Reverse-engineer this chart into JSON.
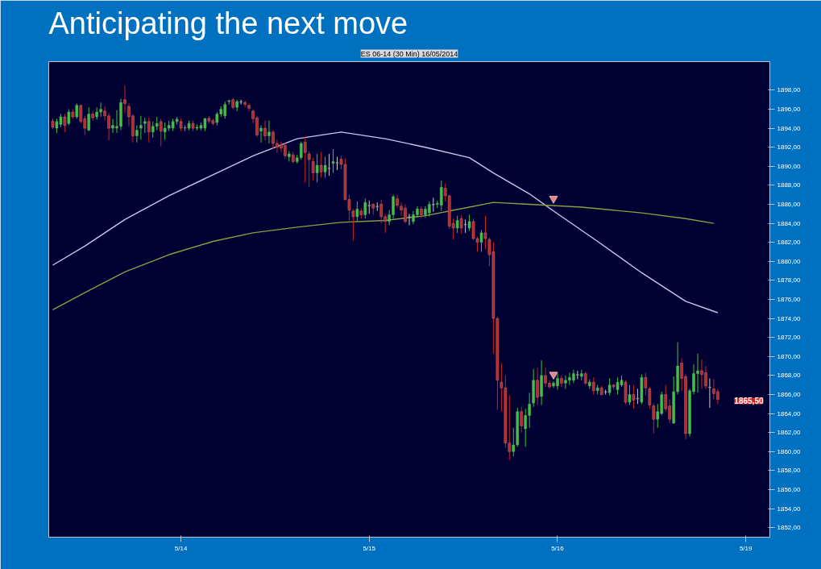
{
  "chart_data": {
    "type": "candlestick",
    "title": "Anticipating the next move",
    "subtitle": "ES 06-14 (30 Min) 16/05/2014",
    "categories": [
      null,
      null,
      null,
      null,
      null,
      null,
      null,
      null,
      null,
      null,
      null,
      null,
      null,
      null,
      null,
      null,
      null,
      null,
      null,
      null,
      null,
      null,
      null,
      null,
      null,
      null,
      null,
      null,
      null,
      null,
      null,
      null,
      "5/14",
      null,
      null,
      null,
      null,
      null,
      null,
      null,
      null,
      null,
      null,
      null,
      null,
      null,
      null,
      null,
      null,
      null,
      null,
      null,
      null,
      null,
      null,
      null,
      null,
      null,
      null,
      null,
      null,
      null,
      null,
      null,
      null,
      null,
      null,
      null,
      null,
      null,
      null,
      null,
      null,
      null,
      null,
      null,
      null,
      null,
      null,
      "5/15",
      null,
      null,
      null,
      null,
      null,
      null,
      null,
      null,
      null,
      null,
      null,
      null,
      null,
      null,
      null,
      null,
      null,
      null,
      null,
      null,
      null,
      null,
      null,
      null,
      null,
      null,
      null,
      null,
      null,
      null,
      null,
      null,
      null,
      null,
      null,
      null,
      null,
      null,
      null,
      null,
      null,
      null,
      null,
      null,
      null,
      null,
      "5/16",
      null,
      null,
      null,
      null,
      null,
      null,
      null,
      null,
      null,
      null,
      null,
      null,
      null,
      null,
      null,
      null,
      null,
      null,
      null,
      null,
      null,
      null,
      null,
      null,
      null,
      null,
      null,
      null,
      null,
      null,
      null,
      null,
      null,
      null,
      null,
      null,
      null,
      null,
      null,
      null,
      null,
      null,
      null,
      null,
      null,
      null,
      "5/19"
    ],
    "ohlc": [
      [
        1894.75,
        1895.0,
        1893.9,
        1894.1
      ],
      [
        1894.0,
        1895.0,
        1893.5,
        1894.7
      ],
      [
        1894.4,
        1895.5,
        1894.1,
        1895.2
      ],
      [
        1895.2,
        1895.5,
        1893.6,
        1894.3
      ],
      [
        1894.5,
        1896.0,
        1894.3,
        1895.7
      ],
      [
        1895.7,
        1896.0,
        1895.0,
        1895.2
      ],
      [
        1895.2,
        1896.6,
        1895.0,
        1896.4
      ],
      [
        1896.4,
        1896.5,
        1894.5,
        1894.7
      ],
      [
        1895.0,
        1895.3,
        1893.3,
        1894.0
      ],
      [
        1893.8,
        1896.2,
        1893.7,
        1895.5
      ],
      [
        1895.5,
        1895.8,
        1894.8,
        1895.1
      ],
      [
        1895.2,
        1896.2,
        1894.9,
        1895.7
      ],
      [
        1895.7,
        1896.7,
        1895.2,
        1896.0
      ],
      [
        1895.8,
        1896.3,
        1894.8,
        1895.3
      ],
      [
        1895.3,
        1895.6,
        1892.7,
        1894.0
      ],
      [
        1894.0,
        1895.0,
        1893.5,
        1894.3
      ],
      [
        1894.0,
        1895.9,
        1893.5,
        1894.2
      ],
      [
        1894.2,
        1897.1,
        1893.8,
        1896.7
      ],
      [
        1897.0,
        1898.5,
        1895.6,
        1896.6
      ],
      [
        1896.3,
        1896.6,
        1894.2,
        1895.2
      ],
      [
        1895.3,
        1895.5,
        1892.5,
        1893.2
      ],
      [
        1893.2,
        1894.3,
        1892.5,
        1893.8
      ],
      [
        1894.0,
        1895.3,
        1892.8,
        1894.3
      ],
      [
        1894.5,
        1895.1,
        1893.5,
        1894.7
      ],
      [
        1894.7,
        1895.1,
        1892.5,
        1893.6
      ],
      [
        1893.6,
        1894.7,
        1893.0,
        1894.2
      ],
      [
        1894.2,
        1895.2,
        1893.8,
        1894.5
      ],
      [
        1894.7,
        1895.0,
        1892.1,
        1893.7
      ],
      [
        1893.6,
        1894.6,
        1892.8,
        1894.0
      ],
      [
        1894.0,
        1894.8,
        1893.7,
        1894.3
      ],
      [
        1894.0,
        1895.0,
        1893.7,
        1894.7
      ],
      [
        1894.7,
        1895.2,
        1894.4,
        1894.95
      ],
      [
        1894.7,
        1895.0,
        1893.7,
        1894.0
      ],
      [
        1894.0,
        1894.3,
        1893.7,
        1894.05
      ],
      [
        1894.0,
        1894.8,
        1893.8,
        1894.5
      ],
      [
        1894.5,
        1894.8,
        1893.7,
        1894.0
      ],
      [
        1894.0,
        1894.4,
        1893.8,
        1894.1
      ],
      [
        1894.0,
        1894.6,
        1893.8,
        1894.3
      ],
      [
        1894.0,
        1895.1,
        1893.7,
        1895.0
      ],
      [
        1895.05,
        1895.3,
        1894.5,
        1894.75
      ],
      [
        1894.8,
        1895.0,
        1894.3,
        1894.5
      ],
      [
        1894.6,
        1895.7,
        1894.3,
        1895.5
      ],
      [
        1895.5,
        1896.3,
        1895.2,
        1896.0
      ],
      [
        1895.3,
        1896.8,
        1895.0,
        1896.5
      ],
      [
        1896.8,
        1897.0,
        1896.5,
        1896.9
      ],
      [
        1897.0,
        1897.2,
        1896.0,
        1896.2
      ],
      [
        1896.2,
        1897.0,
        1895.8,
        1896.8
      ],
      [
        1896.8,
        1897.0,
        1896.5,
        1896.8
      ],
      [
        1896.7,
        1896.9,
        1896.2,
        1896.5
      ],
      [
        1896.4,
        1896.6,
        1895.8,
        1896.1
      ],
      [
        1895.8,
        1896.0,
        1894.5,
        1895.0
      ],
      [
        1895.1,
        1895.3,
        1893.1,
        1893.3
      ],
      [
        1893.7,
        1894.3,
        1892.5,
        1894.0
      ],
      [
        1894.0,
        1894.8,
        1892.7,
        1893.2
      ],
      [
        1893.2,
        1894.8,
        1892.4,
        1893.6
      ],
      [
        1893.6,
        1893.8,
        1891.8,
        1892.4
      ],
      [
        1892.4,
        1892.8,
        1891.4,
        1892.0
      ],
      [
        1892.3,
        1892.6,
        1891.5,
        1891.9
      ],
      [
        1892.2,
        1892.5,
        1890.8,
        1891.1
      ],
      [
        1891.0,
        1891.6,
        1890.5,
        1891.3
      ],
      [
        1891.2,
        1891.5,
        1890.3,
        1890.5
      ],
      [
        1890.5,
        1891.2,
        1890.3,
        1890.9
      ],
      [
        1890.9,
        1892.6,
        1890.7,
        1892.4
      ],
      [
        1892.55,
        1893.1,
        1888.3,
        1891.45
      ],
      [
        1891.3,
        1891.6,
        1887.8,
        1890.7
      ],
      [
        1890.5,
        1890.9,
        1888.5,
        1889.3
      ],
      [
        1889.3,
        1891.3,
        1888.3,
        1890.1
      ],
      [
        1890.1,
        1891.5,
        1888.8,
        1889.4
      ],
      [
        1889.4,
        1891.0,
        1888.8,
        1890.1
      ],
      [
        1889.8,
        1891.3,
        1889.0,
        1889.8
      ],
      [
        1890.3,
        1891.8,
        1889.3,
        1890.5
      ],
      [
        1890.4,
        1891.0,
        1889.6,
        1890.4
      ],
      [
        1890.75,
        1891.1,
        1889.7,
        1890.2
      ],
      [
        1890.2,
        1890.8,
        1886.4,
        1886.5
      ],
      [
        1886.5,
        1887.0,
        1884.3,
        1885.4
      ],
      [
        1885.3,
        1885.5,
        1882.2,
        1884.7
      ],
      [
        1884.7,
        1886.3,
        1884.2,
        1885.5
      ],
      [
        1885.3,
        1885.6,
        1884.5,
        1884.9
      ],
      [
        1884.9,
        1886.6,
        1884.5,
        1886.2
      ],
      [
        1885.9,
        1886.4,
        1885.0,
        1885.9
      ],
      [
        1886.0,
        1886.1,
        1884.9,
        1885.6
      ],
      [
        1885.8,
        1886.2,
        1885.3,
        1885.8
      ],
      [
        1886.0,
        1886.5,
        1884.0,
        1884.7
      ],
      [
        1884.7,
        1885.0,
        1883.0,
        1884.2
      ],
      [
        1884.2,
        1885.4,
        1883.8,
        1884.9
      ],
      [
        1884.9,
        1887.0,
        1884.5,
        1886.8
      ],
      [
        1886.6,
        1887.0,
        1885.6,
        1885.9
      ],
      [
        1885.8,
        1886.2,
        1884.8,
        1885.4
      ],
      [
        1885.6,
        1886.0,
        1884.0,
        1884.2
      ],
      [
        1884.7,
        1885.0,
        1883.8,
        1884.7
      ],
      [
        1884.2,
        1885.3,
        1883.9,
        1884.9
      ],
      [
        1884.9,
        1885.8,
        1884.6,
        1885.5
      ],
      [
        1885.5,
        1885.8,
        1884.6,
        1884.9
      ],
      [
        1884.9,
        1885.8,
        1884.6,
        1885.5
      ],
      [
        1885.1,
        1886.3,
        1884.7,
        1886.0
      ],
      [
        1886.0,
        1886.7,
        1885.2,
        1886.0
      ],
      [
        1886.0,
        1886.4,
        1885.6,
        1886.1
      ],
      [
        1885.9,
        1888.5,
        1885.3,
        1887.8
      ],
      [
        1887.7,
        1888.2,
        1886.3,
        1886.9
      ],
      [
        1886.9,
        1887.0,
        1883.4,
        1883.7
      ],
      [
        1884.0,
        1884.5,
        1882.3,
        1883.5
      ],
      [
        1883.5,
        1884.8,
        1883.0,
        1884.3
      ],
      [
        1884.5,
        1884.8,
        1882.9,
        1883.5
      ],
      [
        1883.9,
        1884.4,
        1883.0,
        1883.9
      ],
      [
        1883.5,
        1884.9,
        1883.2,
        1884.2
      ],
      [
        1884.2,
        1884.5,
        1882.2,
        1882.4
      ],
      [
        1882.4,
        1882.6,
        1881.0,
        1882.0
      ],
      [
        1882.0,
        1883.3,
        1881.0,
        1883.0
      ],
      [
        1883.0,
        1884.8,
        1881.3,
        1882.4
      ],
      [
        1882.3,
        1882.5,
        1879.5,
        1880.7
      ],
      [
        1881.0,
        1882.0,
        1870.3,
        1874.0
      ],
      [
        1874.0,
        1874.2,
        1864.4,
        1867.5
      ],
      [
        1867.3,
        1869.3,
        1864.2,
        1866.7
      ],
      [
        1866.7,
        1868.0,
        1860.4,
        1860.9
      ],
      [
        1860.9,
        1865.9,
        1859.1,
        1860.0
      ],
      [
        1860.0,
        1862.5,
        1859.5,
        1860.7
      ],
      [
        1860.7,
        1864.6,
        1860.5,
        1864.2
      ],
      [
        1864.2,
        1864.7,
        1862.0,
        1862.7
      ],
      [
        1862.4,
        1864.5,
        1860.5,
        1863.8
      ],
      [
        1863.8,
        1866.2,
        1862.5,
        1865.0
      ],
      [
        1865.1,
        1868.7,
        1864.7,
        1867.5
      ],
      [
        1867.5,
        1868.8,
        1864.9,
        1865.7
      ],
      [
        1865.8,
        1869.6,
        1864.9,
        1868.0
      ],
      [
        1868.0,
        1868.8,
        1866.8,
        1867.2
      ],
      [
        1867.2,
        1867.5,
        1866.6,
        1866.8
      ],
      [
        1866.9,
        1867.4,
        1866.7,
        1867.2
      ],
      [
        1866.9,
        1868.3,
        1866.5,
        1867.7
      ],
      [
        1867.7,
        1868.0,
        1866.8,
        1867.2
      ],
      [
        1867.2,
        1868.0,
        1866.6,
        1867.5
      ],
      [
        1867.5,
        1868.3,
        1867.0,
        1867.8
      ],
      [
        1867.5,
        1868.6,
        1867.2,
        1868.2
      ],
      [
        1868.1,
        1868.5,
        1867.6,
        1868.1
      ],
      [
        1867.9,
        1868.6,
        1867.5,
        1868.2
      ],
      [
        1868.2,
        1868.4,
        1867.0,
        1867.2
      ],
      [
        1866.9,
        1867.6,
        1866.6,
        1867.3
      ],
      [
        1867.3,
        1867.8,
        1866.0,
        1866.4
      ],
      [
        1866.4,
        1867.0,
        1866.0,
        1866.7
      ],
      [
        1866.7,
        1866.9,
        1865.9,
        1866.0
      ],
      [
        1866.3,
        1866.5,
        1866.0,
        1866.3
      ],
      [
        1866.2,
        1867.7,
        1865.9,
        1867.0
      ],
      [
        1867.0,
        1867.1,
        1866.5,
        1866.8
      ],
      [
        1866.5,
        1867.8,
        1866.0,
        1867.3
      ],
      [
        1867.0,
        1868.0,
        1866.8,
        1867.5
      ],
      [
        1867.3,
        1867.5,
        1865.0,
        1865.2
      ],
      [
        1865.2,
        1867.0,
        1864.9,
        1866.0
      ],
      [
        1866.0,
        1867.0,
        1864.5,
        1865.4
      ],
      [
        1865.6,
        1866.6,
        1865.0,
        1865.6
      ],
      [
        1865.2,
        1868.1,
        1865.0,
        1867.8
      ],
      [
        1867.8,
        1868.3,
        1865.9,
        1866.7
      ],
      [
        1866.6,
        1866.8,
        1864.5,
        1864.9
      ],
      [
        1864.8,
        1865.1,
        1861.9,
        1863.4
      ],
      [
        1863.4,
        1865.0,
        1862.5,
        1864.2
      ],
      [
        1864.0,
        1866.3,
        1863.8,
        1866.0
      ],
      [
        1866.0,
        1867.0,
        1864.2,
        1864.5
      ],
      [
        1864.8,
        1865.5,
        1863.0,
        1863.4
      ],
      [
        1863.0,
        1867.9,
        1862.9,
        1866.3
      ],
      [
        1866.3,
        1871.5,
        1866.0,
        1869.0
      ],
      [
        1869.3,
        1869.8,
        1866.4,
        1867.7
      ],
      [
        1867.9,
        1868.2,
        1861.3,
        1861.9
      ],
      [
        1861.9,
        1866.6,
        1861.6,
        1866.4
      ],
      [
        1866.3,
        1869.2,
        1866.0,
        1868.2
      ],
      [
        1868.2,
        1870.3,
        1866.2,
        1868.5
      ],
      [
        1868.5,
        1869.7,
        1866.6,
        1868.1
      ],
      [
        1868.3,
        1869.0,
        1866.6,
        1866.9
      ],
      [
        1866.8,
        1867.7,
        1864.6,
        1866.8
      ],
      [
        1866.6,
        1867.6,
        1865.5,
        1866.1
      ],
      [
        1866.3,
        1866.6,
        1865.0,
        1865.5
      ],
      null,
      null,
      null,
      null,
      null,
      null,
      null
    ],
    "series": [
      {
        "type": "line",
        "color": "#c8c8e8",
        "values": [
          1879.6,
          null,
          null,
          null,
          null,
          null,
          null,
          null,
          1881.6,
          null,
          null,
          null,
          null,
          null,
          null,
          null,
          null,
          null,
          1884.4,
          null,
          null,
          null,
          null,
          null,
          null,
          null,
          null,
          null,
          null,
          1886.9,
          null,
          null,
          null,
          null,
          null,
          null,
          null,
          null,
          null,
          null,
          1889.1,
          null,
          null,
          null,
          null,
          null,
          null,
          null,
          null,
          null,
          1891.1,
          null,
          null,
          null,
          null,
          null,
          null,
          null,
          null,
          null,
          null,
          1892.9,
          null,
          null,
          null,
          null,
          null,
          null,
          null,
          null,
          null,
          null,
          1893.6,
          null,
          null,
          null,
          null,
          null,
          null,
          null,
          null,
          null,
          null,
          1892.9,
          null,
          null,
          null,
          null,
          null,
          null,
          null,
          null,
          null,
          1892.0,
          null,
          null,
          null,
          null,
          null,
          null,
          null,
          null,
          null,
          null,
          1890.9,
          null,
          null,
          null,
          null,
          null,
          1889.3,
          null,
          null,
          null,
          null,
          null,
          null,
          null,
          null,
          1887.1,
          null,
          null,
          null,
          null,
          null,
          1885.3,
          null,
          null,
          null,
          null,
          null,
          null,
          null,
          null,
          null,
          null,
          1882.1,
          null,
          null,
          null,
          null,
          null,
          null,
          null,
          null,
          null,
          null,
          1878.8,
          null,
          null,
          null,
          null,
          null,
          null,
          null,
          null,
          null,
          null,
          1875.8,
          null,
          null,
          null,
          null,
          null,
          null,
          null,
          1874.6,
          null,
          null,
          null,
          null,
          null,
          null,
          null
        ]
      },
      {
        "type": "line",
        "color": "#8aa040",
        "values": [
          1874.9,
          null,
          null,
          null,
          null,
          null,
          null,
          null,
          1876.7,
          null,
          null,
          null,
          null,
          null,
          null,
          null,
          null,
          null,
          1878.9,
          null,
          null,
          null,
          null,
          null,
          null,
          null,
          null,
          null,
          null,
          1880.7,
          null,
          null,
          null,
          null,
          null,
          null,
          null,
          null,
          null,
          null,
          1882.1,
          null,
          null,
          null,
          null,
          null,
          null,
          null,
          null,
          null,
          1883.0,
          null,
          null,
          null,
          null,
          null,
          null,
          null,
          null,
          null,
          null,
          1883.6,
          null,
          null,
          null,
          null,
          null,
          null,
          null,
          null,
          null,
          null,
          1884.1,
          null,
          null,
          null,
          null,
          null,
          null,
          null,
          null,
          null,
          null,
          1884.3,
          null,
          null,
          null,
          null,
          null,
          null,
          null,
          null,
          null,
          1884.8,
          null,
          null,
          null,
          null,
          null,
          null,
          null,
          null,
          null,
          null,
          1885.7,
          null,
          null,
          null,
          null,
          null,
          1886.2,
          null,
          null,
          null,
          null,
          null,
          null,
          null,
          null,
          1886.0,
          null,
          null,
          null,
          null,
          null,
          null,
          null,
          null,
          null,
          null,
          null,
          null,
          1885.7,
          null,
          null,
          null,
          null,
          null,
          null,
          null,
          null,
          null,
          null,
          null,
          null,
          null,
          null,
          1885.1,
          null,
          null,
          null,
          null,
          null,
          null,
          null,
          null,
          null,
          null,
          1884.5,
          null,
          null,
          null,
          null,
          null,
          null,
          1884.0,
          null,
          null,
          null,
          null,
          null,
          null,
          null,
          null
        ]
      },
      {
        "type": "scatter",
        "marker": "triangle",
        "color": "#f08080",
        "values": [
          null,
          null,
          null,
          null,
          null,
          null,
          null,
          null,
          null,
          null,
          null,
          null,
          null,
          null,
          null,
          null,
          null,
          null,
          null,
          null,
          null,
          null,
          null,
          null,
          null,
          null,
          null,
          null,
          null,
          null,
          null,
          null,
          null,
          null,
          null,
          null,
          null,
          null,
          null,
          null,
          null,
          null,
          null,
          null,
          null,
          null,
          null,
          null,
          null,
          null,
          null,
          null,
          null,
          null,
          null,
          null,
          null,
          null,
          null,
          null,
          null,
          null,
          null,
          null,
          null,
          null,
          null,
          null,
          null,
          null,
          null,
          null,
          null,
          null,
          null,
          null,
          null,
          null,
          null,
          null,
          null,
          null,
          null,
          null,
          null,
          null,
          null,
          null,
          null,
          null,
          null,
          null,
          null,
          null,
          null,
          null,
          null,
          null,
          null,
          null,
          null,
          null,
          null,
          null,
          null,
          null,
          null,
          null,
          null,
          null,
          null,
          null,
          null,
          null,
          null,
          null,
          null,
          null,
          null,
          null,
          null,
          null,
          null,
          null,
          null,
          1886.6,
          null,
          null,
          null,
          null,
          null,
          null,
          null,
          null,
          null,
          null,
          null,
          null,
          null,
          null,
          null,
          null,
          null,
          null,
          null,
          null,
          null,
          null,
          null,
          null,
          null,
          null,
          null,
          null,
          null,
          null,
          null,
          null,
          null,
          null,
          null,
          null,
          null,
          null,
          null,
          null,
          null,
          null,
          null,
          null,
          null,
          null,
          null,
          null
        ]
      },
      {
        "type": "scatter",
        "marker": "triangle",
        "color": "#f08080",
        "values": [
          null,
          null,
          null,
          null,
          null,
          null,
          null,
          null,
          null,
          null,
          null,
          null,
          null,
          null,
          null,
          null,
          null,
          null,
          null,
          null,
          null,
          null,
          null,
          null,
          null,
          null,
          null,
          null,
          null,
          null,
          null,
          null,
          null,
          null,
          null,
          null,
          null,
          null,
          null,
          null,
          null,
          null,
          null,
          null,
          null,
          null,
          null,
          null,
          null,
          null,
          null,
          null,
          null,
          null,
          null,
          null,
          null,
          null,
          null,
          null,
          null,
          null,
          null,
          null,
          null,
          null,
          null,
          null,
          null,
          null,
          null,
          null,
          null,
          null,
          null,
          null,
          null,
          null,
          null,
          null,
          null,
          null,
          null,
          null,
          null,
          null,
          null,
          null,
          null,
          null,
          null,
          null,
          null,
          null,
          null,
          null,
          null,
          null,
          null,
          null,
          null,
          null,
          null,
          null,
          null,
          null,
          null,
          null,
          null,
          null,
          null,
          null,
          null,
          null,
          null,
          null,
          null,
          null,
          null,
          null,
          null,
          null,
          null,
          null,
          null,
          1868.1,
          null,
          null,
          null,
          null,
          null,
          null,
          null,
          null,
          null,
          null,
          null,
          null,
          null,
          null,
          null,
          null,
          null,
          null,
          null,
          null,
          null,
          null,
          null,
          null,
          null,
          null,
          null,
          null,
          null,
          null,
          null,
          null,
          null,
          null,
          null,
          null,
          null,
          null,
          null,
          null,
          null,
          null,
          null,
          null,
          null,
          null,
          null,
          null
        ]
      }
    ],
    "annotations": [
      "1865,50"
    ],
    "ylim": [
      1851,
      1901
    ],
    "yticks": [
      {
        "value": 1852,
        "label": "1852,00"
      },
      {
        "value": 1854,
        "label": "1854,00"
      },
      {
        "value": 1856,
        "label": "1856,00"
      },
      {
        "value": 1858,
        "label": "1858,00"
      },
      {
        "value": 1860,
        "label": "1860,00"
      },
      {
        "value": 1862,
        "label": "1862,00"
      },
      {
        "value": 1864,
        "label": "1864,00"
      },
      {
        "value": 1866,
        "label": "1866,00"
      },
      {
        "value": 1868,
        "label": "1868,00"
      },
      {
        "value": 1870,
        "label": "1870,00"
      },
      {
        "value": 1872,
        "label": "1872,00"
      },
      {
        "value": 1874,
        "label": "1874,00"
      },
      {
        "value": 1876,
        "label": "1876,00"
      },
      {
        "value": 1878,
        "label": "1878,00"
      },
      {
        "value": 1880,
        "label": "1880,00"
      },
      {
        "value": 1882,
        "label": "1882,00"
      },
      {
        "value": 1884,
        "label": "1884,00"
      },
      {
        "value": 1886,
        "label": "1886,00"
      },
      {
        "value": 1888,
        "label": "1888,00"
      },
      {
        "value": 1890,
        "label": "1890,00"
      },
      {
        "value": 1892,
        "label": "1892,00"
      },
      {
        "value": 1894,
        "label": "1894,00"
      },
      {
        "value": 1896,
        "label": "1896,00"
      },
      {
        "value": 1898,
        "label": "1898,00"
      }
    ],
    "grid": false
  }
}
